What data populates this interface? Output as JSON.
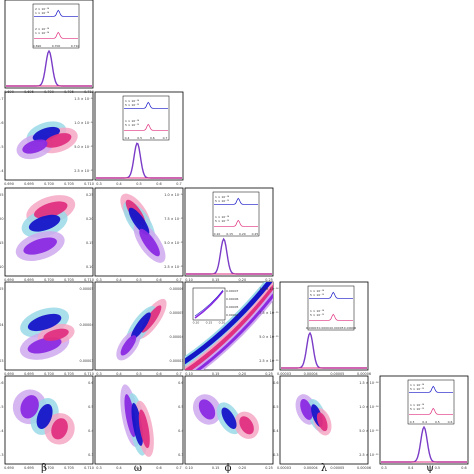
{
  "chart_data": {
    "type": "scatter",
    "kind": "corner-plot",
    "parameters": [
      "β",
      "ω",
      "ϕ",
      "λ",
      "ψ"
    ],
    "colors": {
      "blue": "#1515c8",
      "pink": "#e0307f",
      "purple": "#8a2be2",
      "light_blue": "#9ad9e8",
      "light_pink": "#f4a7c4",
      "light_purple": "#cfa9ee",
      "overlap": "#7a3cc7"
    },
    "diagonal": [
      {
        "param": "β",
        "xticks": [
          "0.690",
          "0.695",
          "0.700",
          "0.705",
          "0.710"
        ],
        "peak_x": 0.5,
        "inset": {
          "ylabels_top": [
            "2 × 10⁻¹⁴",
            "1 × 10⁻¹⁴"
          ],
          "ylabels_bottom": [
            "2 × 10⁻¹⁴",
            "1 × 10⁻¹⁴"
          ],
          "xticks": [
            "0.690",
            "0.700",
            "0.710"
          ]
        }
      },
      {
        "param": "ω",
        "yticks": [
          "1.5 × 10⁻¹⁴",
          "1.0 × 10⁻¹⁴",
          "5.0 × 10⁻¹⁵",
          "2.5 × 10⁻¹⁵"
        ],
        "xticks": [
          "0.3",
          "0.4",
          "0.5",
          "0.6",
          "0.7"
        ],
        "peak_x": 0.48,
        "inset": {
          "ylabels_top": [
            "1 × 10⁻¹⁴",
            "5 × 10⁻¹⁵"
          ],
          "ylabels_bottom": [
            "1 × 10⁻¹⁴",
            "5 × 10⁻¹⁵"
          ],
          "xticks": [
            "0.4",
            "0.5",
            "0.6",
            "0.7"
          ]
        }
      },
      {
        "param": "ϕ",
        "yticks": [
          "1.0 × 10⁻¹⁴",
          "7.5 × 10⁻¹⁵",
          "5.0 × 10⁻¹⁵",
          "2.5 × 10⁻¹⁵"
        ],
        "xticks": [
          "0.10",
          "0.15",
          "0.20",
          "0.25"
        ],
        "peak_x": 0.44,
        "inset": {
          "ylabels_top": [
            "1 × 10⁻¹⁴",
            "5 × 10⁻¹⁵"
          ],
          "ylabels_bottom": [
            "1 × 10⁻¹⁴",
            "5 × 10⁻¹⁵"
          ],
          "xticks": [
            "0.10",
            "0.15",
            "0.20",
            "0.25"
          ]
        }
      },
      {
        "param": "λ",
        "yticks": [
          "1.0 × 10⁻¹⁴",
          "7.5 × 10⁻¹⁵",
          "5.0 × 10⁻¹⁵",
          "2.5 × 10⁻¹⁵"
        ],
        "xticks": [
          "0.00003",
          "0.00004",
          "0.00005",
          "0.00006"
        ],
        "peak_x": 0.34,
        "inset": {
          "ylabels_top": [
            "1 × 10⁻¹⁴",
            "5 × 10⁻¹⁵"
          ],
          "ylabels_bottom": [
            "1 × 10⁻¹⁴",
            "5 × 10⁻¹⁵"
          ],
          "xticks": [
            "0.00003",
            "0.00004",
            "0.00005",
            "0.00006"
          ]
        }
      },
      {
        "param": "ψ",
        "yticks": [
          "1.5 × 10⁻¹⁴",
          "1.0 × 10⁻¹⁴",
          "5.0 × 10⁻¹⁵",
          "2.5 × 10⁻¹⁵"
        ],
        "xticks": [
          "0.3",
          "0.4",
          "0.5",
          "0.6"
        ],
        "peak_x": 0.5,
        "inset": {
          "ylabels_top": [
            "1 × 10⁻¹⁴",
            "5 × 10⁻¹⁵"
          ],
          "ylabels_bottom": [
            "1 × 10⁻¹⁴",
            "5 × 10⁻¹⁵"
          ],
          "xticks": [
            "0.3",
            "0.4",
            "0.5",
            "0.6"
          ]
        }
      }
    ],
    "off_diagonal": [
      {
        "row": 1,
        "col": 0,
        "xticks": [
          "0.690",
          "0.695",
          "0.700",
          "0.705",
          "0.710"
        ],
        "yticks": [
          "0.7",
          "0.6",
          "0.5",
          "0.4"
        ],
        "ellipses": [
          {
            "color": "blue",
            "cx": 0.47,
            "cy": 0.48,
            "rx": 0.26,
            "ry": 0.07,
            "angle": -18
          },
          {
            "color": "pink",
            "cx": 0.6,
            "cy": 0.55,
            "rx": 0.26,
            "ry": 0.07,
            "angle": -18
          },
          {
            "color": "purple",
            "cx": 0.34,
            "cy": 0.62,
            "rx": 0.24,
            "ry": 0.07,
            "angle": -18
          }
        ]
      },
      {
        "row": 2,
        "col": 0,
        "xticks": [
          "0.690",
          "0.695",
          "0.700",
          "0.705",
          "0.710"
        ],
        "yticks": [
          "0.25",
          "0.20",
          "0.15",
          "0.10"
        ],
        "ellipses": [
          {
            "color": "pink",
            "cx": 0.52,
            "cy": 0.25,
            "rx": 0.32,
            "ry": 0.08,
            "angle": -18
          },
          {
            "color": "blue",
            "cx": 0.45,
            "cy": 0.4,
            "rx": 0.3,
            "ry": 0.08,
            "angle": -18
          },
          {
            "color": "purple",
            "cx": 0.4,
            "cy": 0.66,
            "rx": 0.32,
            "ry": 0.08,
            "angle": -18
          }
        ]
      },
      {
        "row": 3,
        "col": 0,
        "xticks": [
          "0.690",
          "0.695",
          "0.700",
          "0.705",
          "0.710"
        ],
        "yticks": [
          "0.00005",
          "0.00004",
          "0.00003"
        ],
        "ellipses": [
          {
            "color": "blue",
            "cx": 0.45,
            "cy": 0.46,
            "rx": 0.32,
            "ry": 0.08,
            "angle": -18
          },
          {
            "color": "purple",
            "cx": 0.45,
            "cy": 0.72,
            "rx": 0.32,
            "ry": 0.08,
            "angle": -15
          },
          {
            "color": "pink",
            "cx": 0.58,
            "cy": 0.6,
            "rx": 0.24,
            "ry": 0.06,
            "angle": -15
          }
        ]
      },
      {
        "row": 4,
        "col": 0,
        "xticks": [
          "0.690",
          "0.695",
          "0.700",
          "0.705",
          "0.710"
        ],
        "yticks": [
          "0.6",
          "0.5",
          "0.4",
          "0.3"
        ],
        "ellipses": [
          {
            "color": "purple",
            "cx": 0.28,
            "cy": 0.35,
            "rx": 0.22,
            "ry": 0.1,
            "angle": -70
          },
          {
            "color": "blue",
            "cx": 0.45,
            "cy": 0.46,
            "rx": 0.24,
            "ry": 0.08,
            "angle": -70
          },
          {
            "color": "pink",
            "cx": 0.62,
            "cy": 0.6,
            "rx": 0.2,
            "ry": 0.09,
            "angle": -70
          }
        ]
      },
      {
        "row": 2,
        "col": 1,
        "xticks": [
          "0.3",
          "0.4",
          "0.5",
          "0.6",
          "0.7"
        ],
        "yticks": [
          "0.25",
          "0.20",
          "0.15",
          "0.10"
        ],
        "ellipses": [
          {
            "color": "pink",
            "cx": 0.46,
            "cy": 0.28,
            "rx": 0.28,
            "ry": 0.06,
            "angle": 55
          },
          {
            "color": "blue",
            "cx": 0.5,
            "cy": 0.38,
            "rx": 0.3,
            "ry": 0.06,
            "angle": 55
          },
          {
            "color": "purple",
            "cx": 0.62,
            "cy": 0.62,
            "rx": 0.3,
            "ry": 0.06,
            "angle": 55
          }
        ]
      },
      {
        "row": 3,
        "col": 1,
        "xticks": [
          "0.3",
          "0.4",
          "0.5",
          "0.6",
          "0.7"
        ],
        "yticks": [
          "0.00005",
          "0.00004",
          "0.00003"
        ],
        "ellipses": [
          {
            "color": "pink",
            "cx": 0.64,
            "cy": 0.42,
            "rx": 0.3,
            "ry": 0.05,
            "angle": -55
          },
          {
            "color": "blue",
            "cx": 0.52,
            "cy": 0.5,
            "rx": 0.3,
            "ry": 0.05,
            "angle": -55
          },
          {
            "color": "purple",
            "cx": 0.38,
            "cy": 0.72,
            "rx": 0.22,
            "ry": 0.05,
            "angle": -55
          }
        ]
      },
      {
        "row": 4,
        "col": 1,
        "xticks": [
          "0.3",
          "0.4",
          "0.5",
          "0.6",
          "0.7"
        ],
        "yticks": [
          "0.6",
          "0.5",
          "0.4",
          "0.3"
        ],
        "ellipses": [
          {
            "color": "purple",
            "cx": 0.4,
            "cy": 0.45,
            "rx": 0.4,
            "ry": 0.05,
            "angle": 80
          },
          {
            "color": "blue",
            "cx": 0.48,
            "cy": 0.55,
            "rx": 0.4,
            "ry": 0.05,
            "angle": 80
          },
          {
            "color": "pink",
            "cx": 0.56,
            "cy": 0.6,
            "rx": 0.36,
            "ry": 0.05,
            "angle": 80
          }
        ]
      },
      {
        "row": 3,
        "col": 2,
        "xticks": [
          "0.10",
          "0.15",
          "0.20",
          "0.25"
        ],
        "yticks": [
          "0.00006",
          "0.00005",
          "0.00004",
          "0.00003"
        ],
        "bands": true,
        "inset_yticks": [
          "0.00007",
          "0.00006",
          "0.00005",
          "0.00004"
        ],
        "inset_xticks": [
          "0.10",
          "0.15",
          "0.20"
        ]
      },
      {
        "row": 4,
        "col": 2,
        "xticks": [
          "0.10",
          "0.15",
          "0.20",
          "0.25"
        ],
        "yticks": [
          "0.6",
          "0.5",
          "0.4",
          "0.3"
        ],
        "ellipses": [
          {
            "color": "purple",
            "cx": 0.25,
            "cy": 0.38,
            "rx": 0.2,
            "ry": 0.08,
            "angle": 60
          },
          {
            "color": "blue",
            "cx": 0.5,
            "cy": 0.48,
            "rx": 0.22,
            "ry": 0.06,
            "angle": 60
          },
          {
            "color": "pink",
            "cx": 0.7,
            "cy": 0.56,
            "rx": 0.18,
            "ry": 0.07,
            "angle": 60
          }
        ]
      },
      {
        "row": 4,
        "col": 3,
        "xticks": [
          "0.00003",
          "0.00004",
          "0.00005",
          "0.00006"
        ],
        "yticks": [
          "0.6",
          "0.5",
          "0.4",
          "0.3"
        ],
        "ellipses": [
          {
            "color": "purple",
            "cx": 0.3,
            "cy": 0.38,
            "rx": 0.2,
            "ry": 0.06,
            "angle": 70
          },
          {
            "color": "blue",
            "cx": 0.42,
            "cy": 0.45,
            "rx": 0.22,
            "ry": 0.05,
            "angle": 70
          },
          {
            "color": "pink",
            "cx": 0.48,
            "cy": 0.52,
            "rx": 0.18,
            "ry": 0.05,
            "angle": 70
          }
        ]
      }
    ]
  }
}
